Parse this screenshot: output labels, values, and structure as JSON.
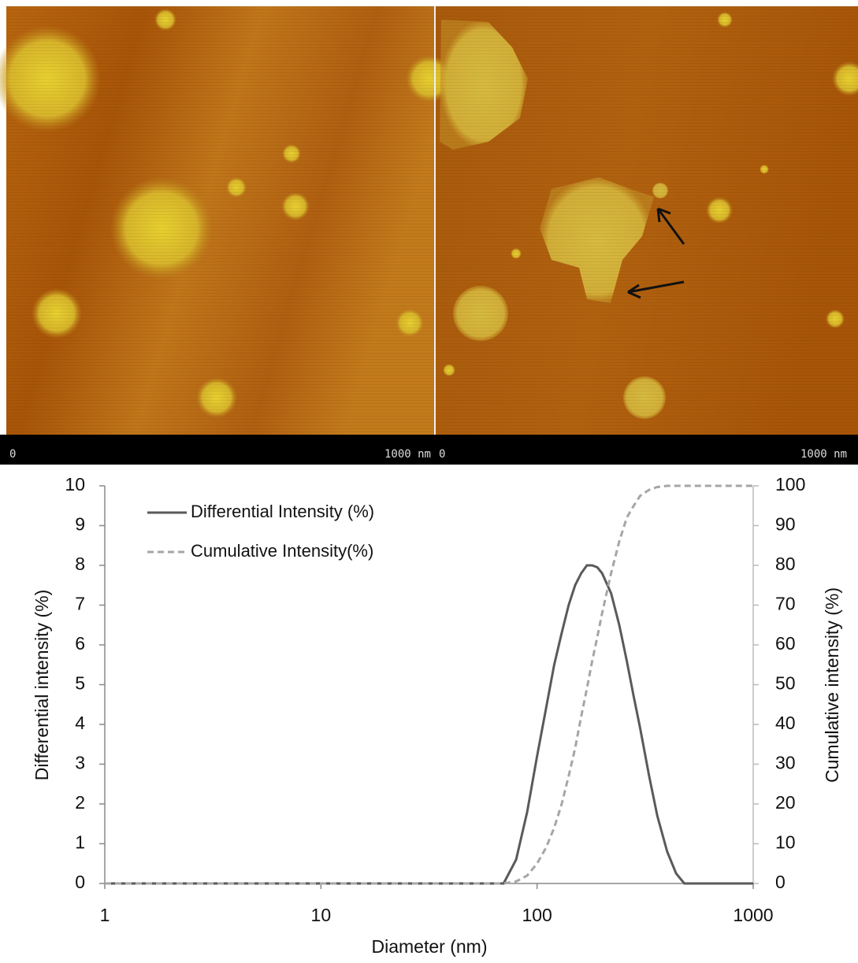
{
  "images": [
    {
      "scale_start": "0",
      "scale_end": "1000 nm"
    },
    {
      "scale_start": "0",
      "scale_end": "1000 nm"
    }
  ],
  "chart_data": {
    "type": "line",
    "xlabel": "Diameter (nm)",
    "ylabel": "Differential intensity (%)",
    "y2label": "Cumulative intensity (%)",
    "xscale": "log",
    "xlim": [
      1,
      1000
    ],
    "xticks": [
      1,
      10,
      100,
      1000
    ],
    "ylim": [
      0,
      10
    ],
    "yticks": [
      0,
      1,
      2,
      3,
      4,
      5,
      6,
      7,
      8,
      9,
      10
    ],
    "y2lim": [
      0,
      100
    ],
    "y2ticks": [
      0,
      10,
      20,
      30,
      40,
      50,
      60,
      70,
      80,
      90,
      100
    ],
    "legend": "top-left",
    "x": [
      1,
      70,
      80,
      90,
      100,
      110,
      120,
      130,
      140,
      150,
      160,
      170,
      180,
      190,
      200,
      220,
      240,
      260,
      280,
      300,
      330,
      360,
      400,
      440,
      480,
      1000
    ],
    "series": [
      {
        "name": "Differential Intensity (%)",
        "color": "#5a5a5a",
        "dash": false,
        "values": [
          0,
          0,
          0.6,
          1.8,
          3.2,
          4.4,
          5.5,
          6.3,
          7.0,
          7.5,
          7.8,
          8.0,
          8.0,
          7.95,
          7.8,
          7.3,
          6.5,
          5.6,
          4.7,
          3.9,
          2.7,
          1.7,
          0.8,
          0.25,
          0,
          0
        ]
      },
      {
        "name": "Cumulative Intensity(%)",
        "color": "#a6a6a6",
        "dash": true,
        "axis": "y2",
        "values": [
          0,
          0,
          0.5,
          2,
          5,
          9,
          14,
          20,
          27,
          34,
          42,
          49,
          56,
          62,
          68,
          78,
          86,
          92,
          95,
          97.5,
          99,
          99.7,
          100,
          100,
          100,
          100
        ]
      }
    ]
  }
}
